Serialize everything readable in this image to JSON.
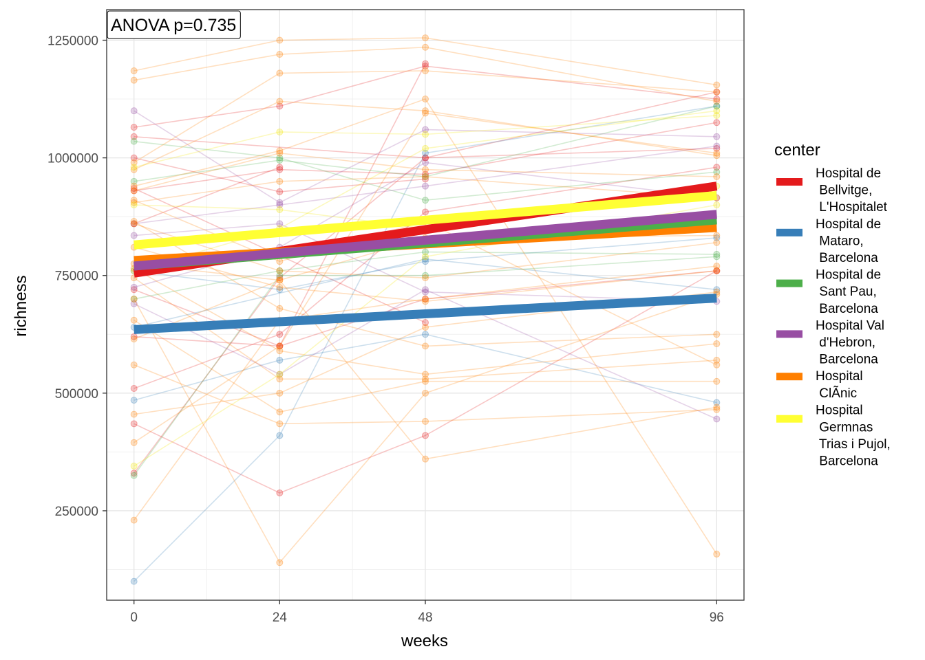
{
  "chart_data": {
    "type": "line",
    "xlabel": "weeks",
    "ylabel": "richness",
    "x_ticks": [
      0,
      24,
      48,
      96
    ],
    "y_ticks": [
      250000,
      500000,
      750000,
      1000000,
      1250000
    ],
    "y_tick_labels": [
      "250000",
      "500000",
      "750000",
      "1000000",
      "1250000"
    ],
    "xlim": [
      -4.5,
      100.5
    ],
    "ylim": [
      60000,
      1315000
    ],
    "grid": true,
    "annotation": "ANOVA p=0.735",
    "legend": {
      "title": "center",
      "position": "right",
      "entries": [
        {
          "lines": [
            "Hospital de",
            " Bellvitge,",
            " L'Hospitalet"
          ],
          "color": "#E41A1C"
        },
        {
          "lines": [
            "Hospital de",
            " Mataro,",
            " Barcelona"
          ],
          "color": "#377EB8"
        },
        {
          "lines": [
            "Hospital de",
            " Sant Pau,",
            " Barcelona"
          ],
          "color": "#4DAF4A"
        },
        {
          "lines": [
            "Hospital Val",
            " d'Hebron,",
            " Barcelona"
          ],
          "color": "#984EA3"
        },
        {
          "lines": [
            "Hospital",
            " ClÃ­nic"
          ],
          "color": "#FF7F00"
        },
        {
          "lines": [
            "Hospital",
            " Germnas",
            " Trias i Pujol,",
            " Barcelona"
          ],
          "color": "#FFFF33"
        }
      ]
    },
    "trend_lines": [
      {
        "center": 0,
        "x": [
          0,
          96
        ],
        "y": [
          755000,
          940000
        ]
      },
      {
        "center": 4,
        "x": [
          0,
          96
        ],
        "y": [
          782000,
          852000
        ]
      },
      {
        "center": 2,
        "x": [
          0,
          96
        ],
        "y": [
          770000,
          868000
        ]
      },
      {
        "center": 3,
        "x": [
          0,
          96
        ],
        "y": [
          770000,
          880000
        ]
      },
      {
        "center": 5,
        "x": [
          0,
          96
        ],
        "y": [
          815000,
          920000
        ]
      },
      {
        "center": 1,
        "x": [
          0,
          96
        ],
        "y": [
          635000,
          702000
        ]
      }
    ],
    "subjects": [
      {
        "center": 0,
        "x": [
          0,
          24,
          48,
          96
        ],
        "y": [
          1065000,
          1110000,
          1195000,
          1125000
        ]
      },
      {
        "center": 0,
        "x": [
          0,
          24,
          48,
          96
        ],
        "y": [
          930000,
          975000,
          965000,
          1075000
        ]
      },
      {
        "center": 0,
        "x": [
          0,
          24,
          48,
          96
        ],
        "y": [
          620000,
          600000,
          700000,
          760000
        ]
      },
      {
        "center": 0,
        "x": [
          0,
          24,
          48,
          96
        ],
        "y": [
          510000,
          625000,
          885000,
          980000
        ]
      },
      {
        "center": 0,
        "x": [
          0,
          24,
          48,
          96
        ],
        "y": [
          435000,
          288000,
          410000,
          760000
        ]
      },
      {
        "center": 0,
        "x": [
          0,
          24,
          48,
          96
        ],
        "y": [
          330000,
          745000,
          1000000,
          1140000
        ]
      },
      {
        "center": 0,
        "x": [
          0,
          24,
          48
        ],
        "y": [
          1000000,
          928000,
          955000
        ]
      },
      {
        "center": 0,
        "x": [
          0,
          24
        ],
        "y": [
          860000,
          980000
        ]
      },
      {
        "center": 0,
        "x": [
          0,
          24,
          48
        ],
        "y": [
          720000,
          600000,
          1200000
        ]
      },
      {
        "center": 0,
        "x": [
          0,
          48,
          96
        ],
        "y": [
          1045000,
          1000000,
          1020000
        ]
      },
      {
        "center": 0,
        "x": [
          0,
          48
        ],
        "y": [
          935000,
          650000
        ]
      },
      {
        "center": 1,
        "x": [
          0,
          24,
          48,
          96
        ],
        "y": [
          485000,
          570000,
          625000,
          480000
        ]
      },
      {
        "center": 1,
        "x": [
          0,
          48,
          96
        ],
        "y": [
          640000,
          785000,
          720000
        ]
      },
      {
        "center": 1,
        "x": [
          0,
          24,
          48,
          96
        ],
        "y": [
          100000,
          410000,
          1010000,
          1110000
        ]
      },
      {
        "center": 1,
        "x": [
          0,
          24,
          48,
          96
        ],
        "y": [
          760000,
          720000,
          780000,
          830000
        ]
      },
      {
        "center": 2,
        "x": [
          0,
          24,
          48,
          96
        ],
        "y": [
          1035000,
          1000000,
          910000,
          970000
        ]
      },
      {
        "center": 2,
        "x": [
          0,
          24,
          48,
          96
        ],
        "y": [
          950000,
          995000,
          960000,
          1110000
        ]
      },
      {
        "center": 2,
        "x": [
          0,
          24,
          48,
          96
        ],
        "y": [
          325000,
          750000,
          750000,
          790000
        ]
      },
      {
        "center": 2,
        "x": [
          0,
          24,
          48,
          96
        ],
        "y": [
          700000,
          760000,
          800000,
          795000
        ]
      },
      {
        "center": 3,
        "x": [
          0,
          24,
          48,
          96
        ],
        "y": [
          1100000,
          905000,
          1060000,
          1045000
        ]
      },
      {
        "center": 3,
        "x": [
          0,
          24,
          48,
          96
        ],
        "y": [
          835000,
          860000,
          715000,
          695000
        ]
      },
      {
        "center": 3,
        "x": [
          0,
          24,
          48,
          96
        ],
        "y": [
          690000,
          540000,
          720000,
          445000
        ]
      },
      {
        "center": 3,
        "x": [
          0,
          24,
          48,
          96
        ],
        "y": [
          725000,
          810000,
          990000,
          915000
        ]
      },
      {
        "center": 3,
        "x": [
          0,
          24,
          48,
          96
        ],
        "y": [
          860000,
          900000,
          940000,
          1025000
        ]
      },
      {
        "center": 4,
        "x": [
          0,
          24,
          48,
          96
        ],
        "y": [
          1185000,
          1250000,
          1255000,
          1155000
        ]
      },
      {
        "center": 4,
        "x": [
          0,
          24,
          48,
          96
        ],
        "y": [
          1165000,
          1220000,
          1235000,
          1120000
        ]
      },
      {
        "center": 4,
        "x": [
          0,
          24,
          48,
          96
        ],
        "y": [
          990000,
          1180000,
          1185000,
          1140000
        ]
      },
      {
        "center": 4,
        "x": [
          0,
          24,
          48,
          96
        ],
        "y": [
          975000,
          1120000,
          1100000,
          1005000
        ]
      },
      {
        "center": 4,
        "x": [
          0,
          24,
          48,
          96
        ],
        "y": [
          930000,
          1010000,
          975000,
          960000
        ]
      },
      {
        "center": 4,
        "x": [
          0,
          24,
          48,
          96
        ],
        "y": [
          905000,
          950000,
          960000,
          915000
        ]
      },
      {
        "center": 4,
        "x": [
          0,
          24,
          48,
          96
        ],
        "y": [
          865000,
          680000,
          600000,
          625000
        ]
      },
      {
        "center": 4,
        "x": [
          0,
          24,
          48,
          96
        ],
        "y": [
          810000,
          725000,
          695000,
          760000
        ]
      },
      {
        "center": 4,
        "x": [
          0,
          24,
          48,
          96
        ],
        "y": [
          775000,
          740000,
          830000,
          835000
        ]
      },
      {
        "center": 4,
        "x": [
          0,
          24,
          48,
          96
        ],
        "y": [
          765000,
          590000,
          540000,
          605000
        ]
      },
      {
        "center": 4,
        "x": [
          0,
          24,
          48,
          96
        ],
        "y": [
          745000,
          530000,
          530000,
          570000
        ]
      },
      {
        "center": 4,
        "x": [
          0,
          24,
          48,
          96
        ],
        "y": [
          700000,
          140000,
          500000,
          710000
        ]
      },
      {
        "center": 4,
        "x": [
          0,
          24,
          48,
          96
        ],
        "y": [
          655000,
          460000,
          525000,
          525000
        ]
      },
      {
        "center": 4,
        "x": [
          0,
          24,
          48,
          96
        ],
        "y": [
          615000,
          740000,
          360000,
          470000
        ]
      },
      {
        "center": 4,
        "x": [
          0,
          24,
          48,
          96
        ],
        "y": [
          560000,
          435000,
          440000,
          465000
        ]
      },
      {
        "center": 4,
        "x": [
          0,
          24,
          48,
          96
        ],
        "y": [
          455000,
          500000,
          640000,
          715000
        ]
      },
      {
        "center": 4,
        "x": [
          0,
          24,
          48,
          96
        ],
        "y": [
          395000,
          600000,
          1095000,
          1010000
        ]
      },
      {
        "center": 4,
        "x": [
          0,
          24,
          48,
          96
        ],
        "y": [
          230000,
          655000,
          700000,
          770000
        ]
      },
      {
        "center": 4,
        "x": [
          0,
          24,
          48,
          96
        ],
        "y": [
          910000,
          780000,
          865000,
          560000
        ]
      },
      {
        "center": 4,
        "x": [
          0,
          24,
          48,
          96
        ],
        "y": [
          940000,
          1015000,
          1125000,
          158000
        ]
      },
      {
        "center": 4,
        "x": [
          0,
          24,
          48,
          96
        ],
        "y": [
          860000,
          760000,
          745000,
          820000
        ]
      },
      {
        "center": 5,
        "x": [
          0,
          24,
          48,
          96
        ],
        "y": [
          980000,
          1055000,
          1050000,
          1090000
        ]
      },
      {
        "center": 5,
        "x": [
          0,
          24,
          48,
          96
        ],
        "y": [
          760000,
          850000,
          1020000,
          1100000
        ]
      },
      {
        "center": 5,
        "x": [
          0,
          24,
          48,
          96
        ],
        "y": [
          900000,
          890000,
          850000,
          940000
        ]
      },
      {
        "center": 5,
        "x": [
          0,
          24,
          48,
          96
        ],
        "y": [
          345000,
          540000,
          790000,
          900000
        ]
      }
    ]
  }
}
